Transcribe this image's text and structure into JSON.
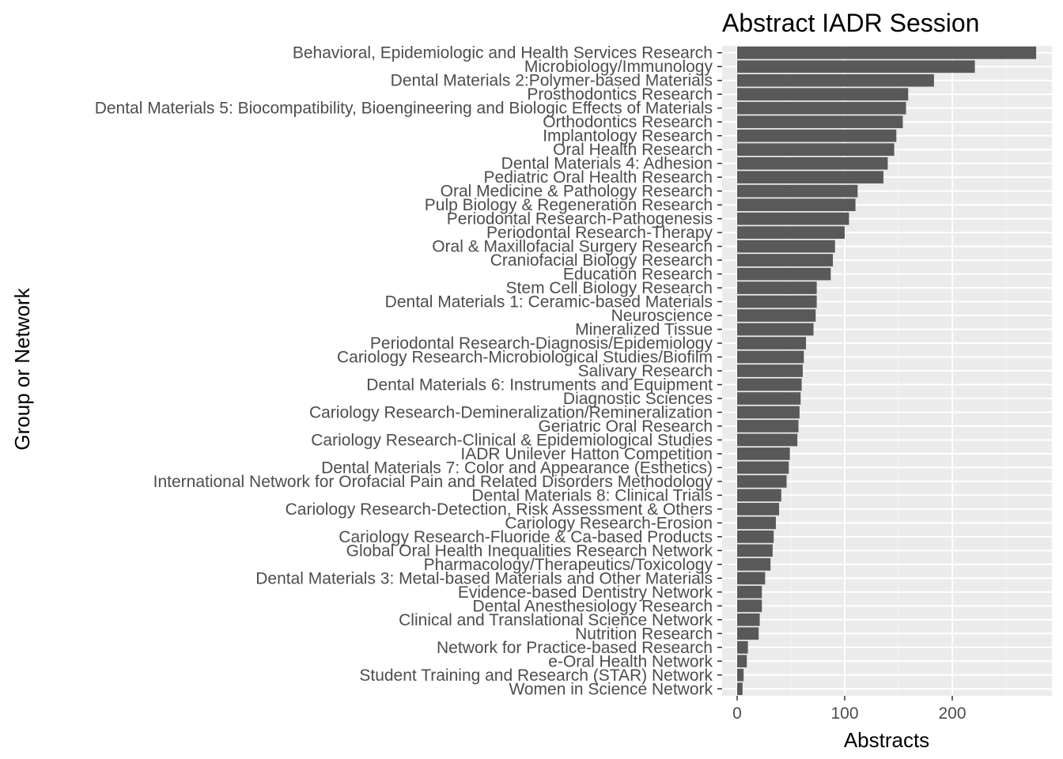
{
  "chart_data": {
    "type": "bar",
    "orientation": "horizontal",
    "title": "Abstract IADR Session",
    "xlabel": "Abstracts",
    "ylabel": "Group or Network",
    "xlim": [
      -14,
      292
    ],
    "xticks": [
      0,
      100,
      200
    ],
    "grid": true,
    "legend": "none",
    "colors": {
      "bar": "#595959",
      "panel": "#ebebeb",
      "grid_major": "#ffffff",
      "grid_minor": "#f5f5f5",
      "text": "#4d4d4d"
    },
    "categories": [
      "Behavioral, Epidemiologic and Health Services Research",
      "Microbiology/Immunology",
      "Dental Materials 2:Polymer-based Materials",
      "Prosthodontics Research",
      "Dental Materials 5: Biocompatibility, Bioengineering and Biologic Effects of Materials",
      "Orthodontics Research",
      "Implantology Research",
      "Oral Health Research",
      "Dental Materials 4: Adhesion",
      "Pediatric Oral Health Research",
      "Oral Medicine & Pathology Research",
      "Pulp Biology & Regeneration Research",
      "Periodontal Research-Pathogenesis",
      "Periodontal Research-Therapy",
      "Oral & Maxillofacial Surgery Research",
      "Craniofacial Biology Research",
      "Education Research",
      "Stem Cell Biology Research",
      "Dental Materials 1: Ceramic-based Materials",
      "Neuroscience",
      "Mineralized Tissue",
      "Periodontal Research-Diagnosis/Epidemiology",
      "Cariology Research-Microbiological Studies/Biofilm",
      "Salivary Research",
      "Dental Materials 6: Instruments and Equipment",
      "Diagnostic Sciences",
      "Cariology Research-Demineralization/Remineralization",
      "Geriatric Oral Research",
      "Cariology Research-Clinical & Epidemiological Studies",
      "IADR Unilever Hatton Competition",
      "Dental Materials 7: Color and Appearance (Esthetics)",
      "International Network for Orofacial Pain and Related Disorders Methodology",
      "Dental Materials 8: Clinical Trials",
      "Cariology Research-Detection, Risk Assessment & Others",
      "Cariology Research-Erosion",
      "Cariology Research-Fluoride & Ca-based Products",
      "Global Oral Health Inequalities Research Network",
      "Pharmacology/Therapeutics/Toxicology",
      "Dental Materials 3: Metal-based Materials and Other Materials",
      "Evidence-based Dentistry Network",
      "Dental Anesthesiology Research",
      "Clinical and Translational Science Network",
      "Nutrition Research",
      "Network for Practice-based Research",
      "e-Oral Health Network",
      "Student Training and Research (STAR) Network",
      "Women in Science Network"
    ],
    "values": [
      278,
      221,
      183,
      159,
      157,
      154,
      148,
      146,
      140,
      136,
      112,
      110,
      104,
      100,
      91,
      89,
      87,
      74,
      74,
      73,
      71,
      64,
      62,
      61,
      60,
      59,
      58,
      57,
      56,
      49,
      48,
      46,
      41,
      39,
      36,
      34,
      33,
      31,
      26,
      23,
      23,
      21,
      20,
      10,
      9,
      6,
      5
    ]
  }
}
